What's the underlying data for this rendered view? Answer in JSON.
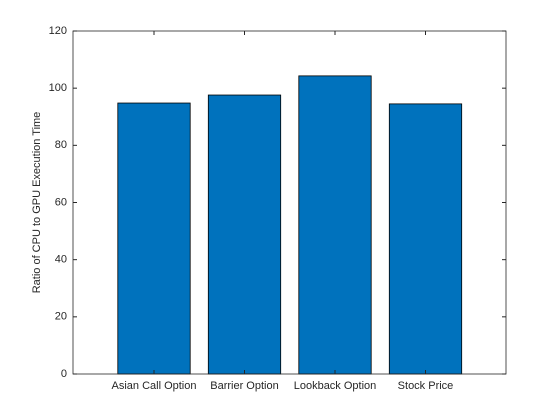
{
  "chart_data": {
    "type": "bar",
    "ylabel": "Ratio of CPU to GPU Execution Time",
    "categories": [
      "Asian Call Option",
      "Barrier Option",
      "Lookback Option",
      "Stock Price"
    ],
    "values": [
      94.8,
      97.6,
      104.3,
      94.5
    ],
    "color": "#0072BD",
    "ylim": [
      0,
      120
    ],
    "yticks": [
      0,
      20,
      40,
      60,
      80,
      100,
      120
    ],
    "grid": false
  }
}
